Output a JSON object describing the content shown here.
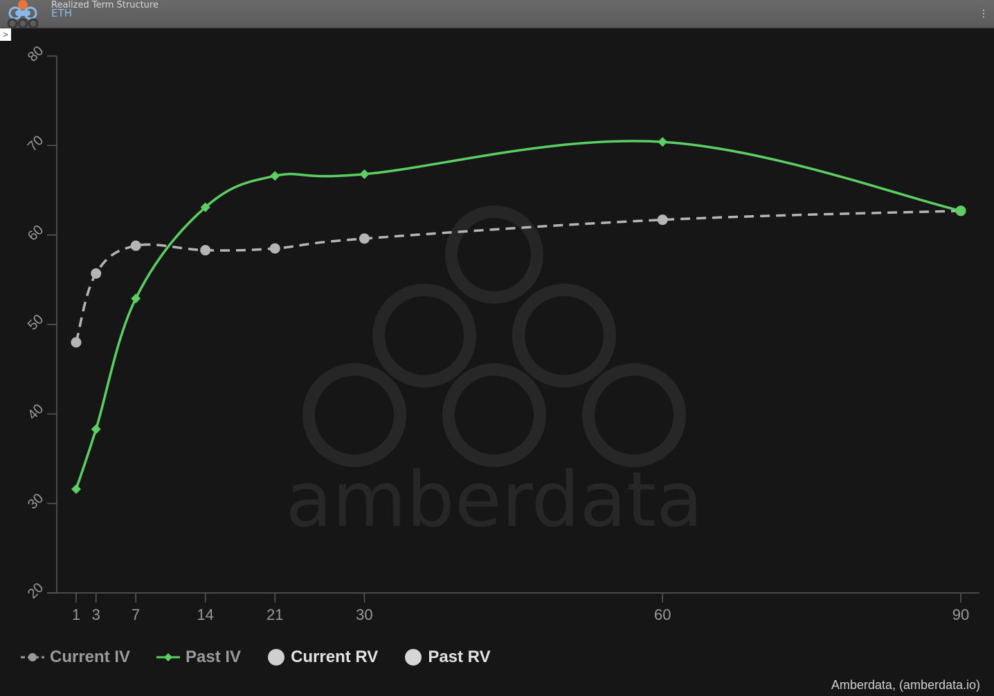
{
  "header": {
    "title": "Realized Term Structure",
    "asset": "ETH",
    "menu_icon": "kebab-menu-icon",
    "expand_icon": "chevron-right-icon",
    "expand_glyph": ">"
  },
  "watermark": "amberdata",
  "credits": "Amberdata, (amberdata.io)",
  "colors": {
    "background": "#161616",
    "current_iv": "#b5b5b5",
    "past_iv": "#5ccf63",
    "current_rv": "#cfcfcf",
    "past_rv": "#d6d6d6",
    "axis": "#5a5a5a",
    "tick_text": "#9a9a9a"
  },
  "chart_data": {
    "type": "line",
    "title": "",
    "xlabel": "",
    "ylabel": "",
    "xlim": [
      1,
      90
    ],
    "ylim": [
      20,
      80
    ],
    "x_ticks": [
      1,
      3,
      7,
      14,
      21,
      30,
      60,
      90
    ],
    "y_ticks": [
      20,
      30,
      40,
      50,
      60,
      70,
      80
    ],
    "grid": false,
    "legend_position": "bottom-left",
    "series": [
      {
        "name": "Current IV",
        "style": "dashed",
        "marker": "circle",
        "x": [
          1,
          3,
          7,
          14,
          21,
          30,
          60,
          90
        ],
        "y": [
          48.0,
          55.7,
          58.8,
          58.3,
          58.5,
          59.6,
          61.7,
          62.7
        ]
      },
      {
        "name": "Past IV",
        "style": "solid",
        "marker": "diamond",
        "x": [
          1,
          3,
          7,
          14,
          21,
          30,
          60,
          90
        ],
        "y": [
          31.6,
          38.3,
          52.9,
          63.1,
          66.6,
          66.8,
          70.4,
          62.7
        ]
      },
      {
        "name": "Current RV",
        "style": "none",
        "marker": "circle",
        "x": [],
        "y": []
      },
      {
        "name": "Past RV",
        "style": "none",
        "marker": "circle",
        "x": [],
        "y": []
      }
    ]
  }
}
